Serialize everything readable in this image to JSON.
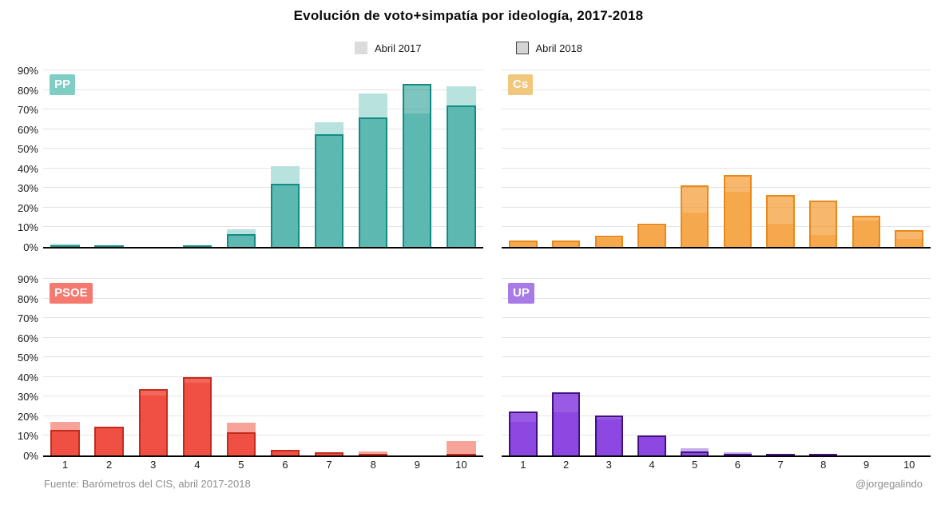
{
  "title": "Evolución de voto+simpatía por ideología, 2017-2018",
  "legend": {
    "items": [
      {
        "label": "Abril 2017",
        "swatch_color": "#dcdcdc",
        "bordered": false
      },
      {
        "label": "Abril 2018",
        "swatch_color": "#d4d4d4",
        "bordered": true
      }
    ]
  },
  "axes": {
    "y_ticks": [
      "90%",
      "80%",
      "70%",
      "60%",
      "50%",
      "40%",
      "30%",
      "20%",
      "10%",
      "0%"
    ],
    "y_max": 90,
    "x_ticks": [
      "1",
      "2",
      "3",
      "4",
      "5",
      "6",
      "7",
      "8",
      "9",
      "10"
    ],
    "grid": true
  },
  "footer": {
    "source": "Fuente: Barómetros del CIS, abril 2017-2018",
    "credit": "@jorgegalindo"
  },
  "chart_data": [
    {
      "type": "bar",
      "party": "PP",
      "position": "top-left",
      "categories": [
        1,
        2,
        3,
        4,
        5,
        6,
        7,
        8,
        9,
        10
      ],
      "series": [
        {
          "name": "Abril 2017",
          "values": [
            1.5,
            1,
            0,
            0.5,
            9,
            41,
            63.5,
            78,
            68,
            82
          ]
        },
        {
          "name": "Abril 2018",
          "values": [
            0.8,
            0.6,
            0,
            0.8,
            6.5,
            32,
            57.5,
            66,
            83,
            72
          ]
        }
      ],
      "ylim": [
        0,
        90
      ],
      "colors": {
        "chip": "#7fcdc5",
        "fill_2017": "#b7e2de",
        "fill_2018": "rgba(20,150,140,0.55)",
        "stroke_2018": "#128c83"
      }
    },
    {
      "type": "bar",
      "party": "Cs",
      "position": "top-right",
      "categories": [
        1,
        2,
        3,
        4,
        5,
        6,
        7,
        8,
        9,
        10
      ],
      "series": [
        {
          "name": "Abril 2017",
          "values": [
            2.5,
            2.5,
            4.5,
            10.5,
            17.5,
            28,
            12,
            6,
            13.5,
            4
          ]
        },
        {
          "name": "Abril 2018",
          "values": [
            3.3,
            3.3,
            5.8,
            12,
            31.5,
            36.5,
            26.5,
            23.5,
            16,
            8.5
          ]
        }
      ],
      "ylim": [
        0,
        90
      ],
      "colors": {
        "chip": "#f1c77e",
        "fill_2017": "#fbd59e",
        "fill_2018": "rgba(243,146,33,0.65)",
        "stroke_2018": "#e8891c"
      }
    },
    {
      "type": "bar",
      "party": "PSOE",
      "position": "bottom-left",
      "categories": [
        1,
        2,
        3,
        4,
        5,
        6,
        7,
        8,
        9,
        10
      ],
      "series": [
        {
          "name": "Abril 2017",
          "values": [
            17,
            14,
            30.5,
            37,
            16.5,
            2.5,
            1,
            2,
            0,
            7.5
          ]
        },
        {
          "name": "Abril 2018",
          "values": [
            13,
            14.5,
            34,
            40,
            12,
            3,
            1.5,
            0.5,
            0,
            0.5
          ]
        }
      ],
      "ylim": [
        0,
        90
      ],
      "colors": {
        "chip": "#f4796e",
        "fill_2017": "#f8a39a",
        "fill_2018": "rgba(238,52,37,0.75)",
        "stroke_2018": "#c52b1d"
      }
    },
    {
      "type": "bar",
      "party": "UP",
      "position": "bottom-right",
      "categories": [
        1,
        2,
        3,
        4,
        5,
        6,
        7,
        8,
        9,
        10
      ],
      "series": [
        {
          "name": "Abril 2017",
          "values": [
            17,
            22,
            18.5,
            9.5,
            3.7,
            1.6,
            1,
            0.8,
            0,
            0
          ]
        },
        {
          "name": "Abril 2018",
          "values": [
            22.5,
            32,
            20.5,
            10,
            2,
            0.7,
            0.5,
            0.5,
            0,
            0
          ]
        }
      ],
      "ylim": [
        0,
        90
      ],
      "colors": {
        "chip": "#a77ae5",
        "fill_2017": "#c7abef",
        "fill_2018": "rgba(124,43,220,0.78)",
        "stroke_2018": "#40127f"
      }
    }
  ]
}
